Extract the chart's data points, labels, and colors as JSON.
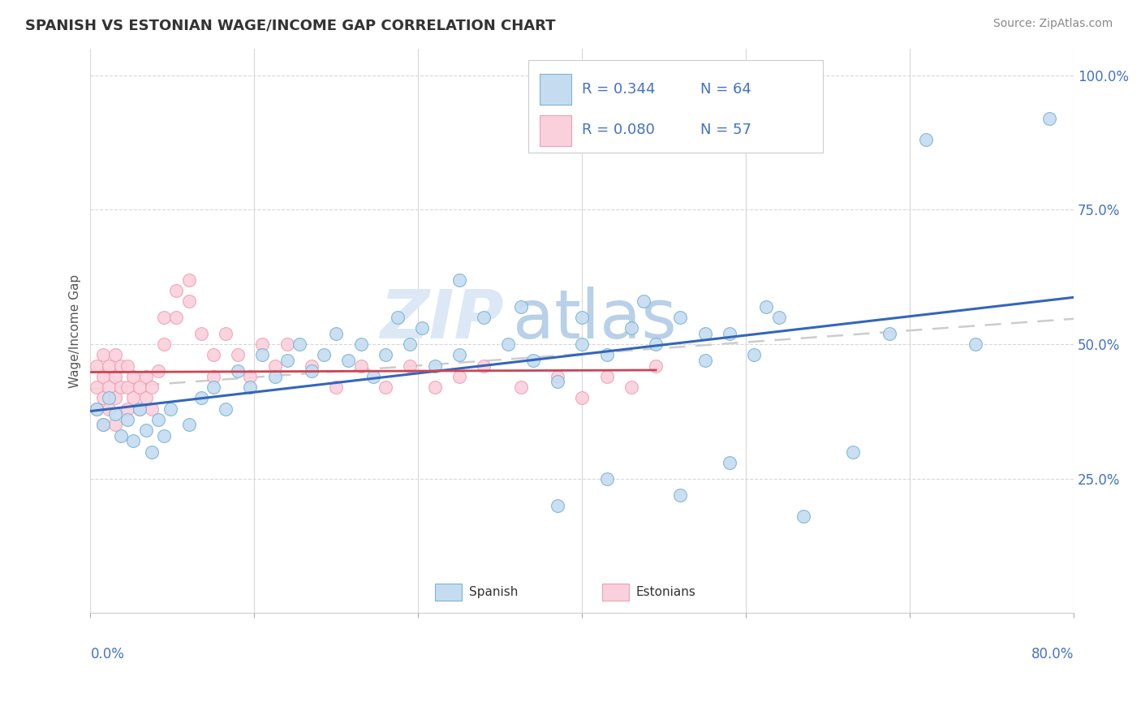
{
  "title": "SPANISH VS ESTONIAN WAGE/INCOME GAP CORRELATION CHART",
  "source_text": "Source: ZipAtlas.com",
  "ylabel": "Wage/Income Gap",
  "xmin": 0.0,
  "xmax": 0.8,
  "ymin": 0.0,
  "ymax": 1.05,
  "blue_color": "#7ab3d9",
  "pink_color": "#f0a0b0",
  "blue_fill": "#c5dcf0",
  "pink_fill": "#fad0dc",
  "trend_blue_color": "#3366bb",
  "trend_pink_color": "#cc4455",
  "trend_gray_color": "#cccccc",
  "watermark_zip": "ZIP",
  "watermark_atlas": "atlas",
  "blue_x": [
    0.005,
    0.01,
    0.015,
    0.02,
    0.025,
    0.03,
    0.035,
    0.04,
    0.045,
    0.05,
    0.055,
    0.06,
    0.065,
    0.08,
    0.09,
    0.1,
    0.11,
    0.12,
    0.13,
    0.14,
    0.15,
    0.16,
    0.17,
    0.18,
    0.19,
    0.2,
    0.21,
    0.22,
    0.23,
    0.24,
    0.25,
    0.26,
    0.27,
    0.28,
    0.3,
    0.32,
    0.34,
    0.36,
    0.38,
    0.4,
    0.42,
    0.44,
    0.46,
    0.48,
    0.5,
    0.52,
    0.54,
    0.56,
    0.3,
    0.35,
    0.4,
    0.45,
    0.5,
    0.55,
    0.38,
    0.42,
    0.48,
    0.52,
    0.58,
    0.62,
    0.65,
    0.68,
    0.72,
    0.78
  ],
  "blue_y": [
    0.38,
    0.35,
    0.4,
    0.37,
    0.33,
    0.36,
    0.32,
    0.38,
    0.34,
    0.3,
    0.36,
    0.33,
    0.38,
    0.35,
    0.4,
    0.42,
    0.38,
    0.45,
    0.42,
    0.48,
    0.44,
    0.47,
    0.5,
    0.45,
    0.48,
    0.52,
    0.47,
    0.5,
    0.44,
    0.48,
    0.55,
    0.5,
    0.53,
    0.46,
    0.48,
    0.55,
    0.5,
    0.47,
    0.43,
    0.5,
    0.48,
    0.53,
    0.5,
    0.55,
    0.47,
    0.52,
    0.48,
    0.55,
    0.62,
    0.57,
    0.55,
    0.58,
    0.52,
    0.57,
    0.2,
    0.25,
    0.22,
    0.28,
    0.18,
    0.3,
    0.52,
    0.88,
    0.5,
    0.92
  ],
  "pink_x": [
    0.005,
    0.005,
    0.005,
    0.01,
    0.01,
    0.01,
    0.01,
    0.015,
    0.015,
    0.015,
    0.02,
    0.02,
    0.02,
    0.02,
    0.025,
    0.025,
    0.03,
    0.03,
    0.03,
    0.035,
    0.035,
    0.04,
    0.04,
    0.045,
    0.045,
    0.05,
    0.05,
    0.055,
    0.06,
    0.06,
    0.07,
    0.07,
    0.08,
    0.08,
    0.09,
    0.1,
    0.1,
    0.11,
    0.12,
    0.13,
    0.14,
    0.15,
    0.16,
    0.18,
    0.2,
    0.22,
    0.24,
    0.26,
    0.28,
    0.3,
    0.32,
    0.35,
    0.38,
    0.4,
    0.42,
    0.44,
    0.46
  ],
  "pink_y": [
    0.38,
    0.42,
    0.46,
    0.35,
    0.4,
    0.44,
    0.48,
    0.38,
    0.42,
    0.46,
    0.35,
    0.4,
    0.44,
    0.48,
    0.42,
    0.46,
    0.38,
    0.42,
    0.46,
    0.4,
    0.44,
    0.38,
    0.42,
    0.4,
    0.44,
    0.38,
    0.42,
    0.45,
    0.5,
    0.55,
    0.6,
    0.55,
    0.58,
    0.62,
    0.52,
    0.48,
    0.44,
    0.52,
    0.48,
    0.44,
    0.5,
    0.46,
    0.5,
    0.46,
    0.42,
    0.46,
    0.42,
    0.46,
    0.42,
    0.44,
    0.46,
    0.42,
    0.44,
    0.4,
    0.44,
    0.42,
    0.46
  ]
}
